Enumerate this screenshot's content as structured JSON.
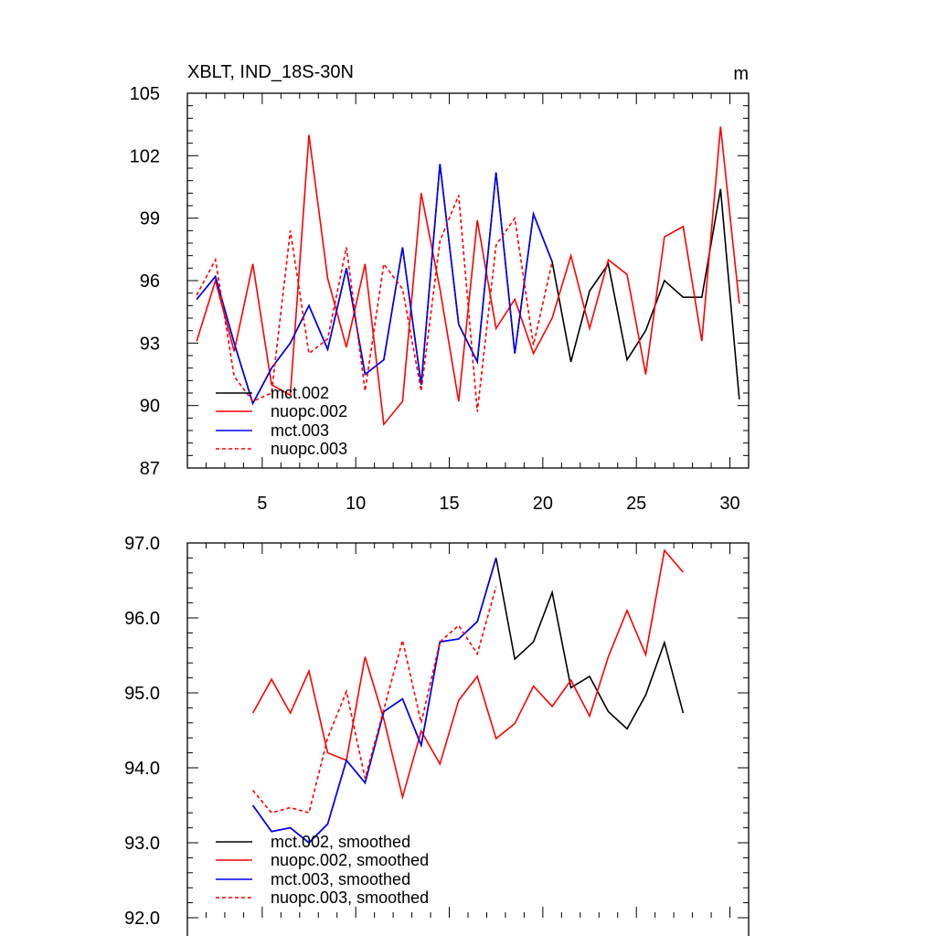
{
  "colors": {
    "mct": "#000000",
    "nuopc": "#ff0000",
    "mct003": "#0000ff"
  },
  "chart_data": [
    {
      "type": "line",
      "title": "XBLT, IND_18S-30N",
      "units": "m",
      "xlim": [
        1,
        31
      ],
      "ylim": [
        87,
        105
      ],
      "xticks": [
        5,
        10,
        15,
        20,
        25,
        30
      ],
      "xtick_labels": [
        "5",
        "10",
        "15",
        "20",
        "25",
        "30"
      ],
      "yticks": [
        87,
        90,
        93,
        96,
        99,
        102,
        105
      ],
      "ytick_labels": [
        "87",
        "90",
        "93",
        "96",
        "99",
        "102",
        "105"
      ],
      "legend_position": "lower-left",
      "series": [
        {
          "name": "mct.002",
          "legend": "mct.002",
          "color": "#000000",
          "dash": false,
          "x": [
            1.5,
            2.5,
            3.5,
            4.5,
            5.5,
            6.5,
            7.5,
            8.5,
            9.5,
            10.5,
            11.5,
            12.5,
            13.5,
            14.5,
            15.5,
            16.5,
            17.5,
            18.5,
            19.5,
            20.5,
            21.5,
            22.5,
            23.5,
            24.5,
            25.5,
            26.5,
            27.5,
            28.5,
            29.5,
            30.5
          ],
          "y": [
            95.1,
            96.2,
            93.0,
            90.1,
            91.8,
            93.0,
            94.8,
            92.7,
            96.6,
            91.5,
            92.2,
            97.6,
            91.0,
            101.6,
            93.9,
            92.1,
            101.2,
            92.5,
            99.2,
            96.9,
            92.1,
            95.5,
            96.8,
            92.2,
            93.6,
            96.0,
            95.2,
            95.2,
            100.4,
            90.3
          ]
        },
        {
          "name": "nuopc.002",
          "legend": "nuopc.002",
          "color": "#ff0000",
          "dash": false,
          "x": [
            1.5,
            2.5,
            3.5,
            4.5,
            5.5,
            6.5,
            7.5,
            8.5,
            9.5,
            10.5,
            11.5,
            12.5,
            13.5,
            14.5,
            15.5,
            16.5,
            17.5,
            18.5,
            19.5,
            20.5,
            21.5,
            22.5,
            23.5,
            24.5,
            25.5,
            26.5,
            27.5,
            28.5,
            29.5,
            30.5
          ],
          "y": [
            93.1,
            96.0,
            92.6,
            96.8,
            91.0,
            90.5,
            103.0,
            96.1,
            92.8,
            96.8,
            89.1,
            90.2,
            100.2,
            95.6,
            90.2,
            98.9,
            93.7,
            95.1,
            92.5,
            94.2,
            97.2,
            93.7,
            97.0,
            96.3,
            91.5,
            98.1,
            98.6,
            93.1,
            103.4,
            94.9
          ]
        },
        {
          "name": "mct.003",
          "legend": "mct.003",
          "color": "#0000ff",
          "dash": false,
          "x": [
            1.5,
            2.5,
            3.5,
            4.5,
            5.5,
            6.5,
            7.5,
            8.5,
            9.5,
            10.5,
            11.5,
            12.5,
            13.5,
            14.5,
            15.5,
            16.5,
            17.5,
            18.5,
            19.5,
            20.5
          ],
          "y": [
            95.1,
            96.2,
            93.0,
            90.1,
            91.8,
            93.0,
            94.8,
            92.7,
            96.6,
            91.5,
            92.2,
            97.6,
            91.0,
            101.6,
            93.9,
            92.1,
            101.2,
            92.5,
            99.2,
            96.9
          ]
        },
        {
          "name": "nuopc.003",
          "legend": "nuopc.003",
          "color": "#ff0000",
          "dash": true,
          "x": [
            1.5,
            2.5,
            3.5,
            4.5,
            5.5,
            6.5,
            7.5,
            8.5,
            9.5,
            10.5,
            11.5,
            12.5,
            13.5,
            14.5,
            15.5,
            16.5,
            17.5,
            18.5,
            19.5,
            20.5
          ],
          "y": [
            95.3,
            97.0,
            91.4,
            90.2,
            90.6,
            98.4,
            92.5,
            93.2,
            97.6,
            90.7,
            96.8,
            95.6,
            90.7,
            97.9,
            100.1,
            89.7,
            97.7,
            99.0,
            92.9,
            96.9
          ]
        }
      ]
    },
    {
      "type": "line",
      "xlim": [
        1,
        31
      ],
      "ylim": [
        92.0,
        97.0
      ],
      "xticks": [
        5,
        10,
        15,
        20,
        25,
        30
      ],
      "yticks": [
        92.0,
        93.0,
        94.0,
        95.0,
        96.0,
        97.0
      ],
      "ytick_labels": [
        "92.0",
        "93.0",
        "94.0",
        "95.0",
        "96.0",
        "97.0"
      ],
      "legend_position": "lower-left",
      "series": [
        {
          "name": "mct.002, smoothed",
          "legend": "mct.002, smoothed",
          "color": "#000000",
          "dash": false,
          "x": [
            4.5,
            5.5,
            6.5,
            7.5,
            8.5,
            9.5,
            10.5,
            11.5,
            12.5,
            13.5,
            14.5,
            15.5,
            16.5,
            17.5,
            18.5,
            19.5,
            20.5,
            21.5,
            22.5,
            23.5,
            24.5,
            25.5,
            26.5,
            27.5
          ],
          "y": [
            93.5,
            93.15,
            93.2,
            93.0,
            93.25,
            94.1,
            93.8,
            94.75,
            94.92,
            94.3,
            95.68,
            95.72,
            95.95,
            96.8,
            95.45,
            95.68,
            96.34,
            95.07,
            95.22,
            94.75,
            94.52,
            94.97,
            95.67,
            94.73
          ]
        },
        {
          "name": "nuopc.002, smoothed",
          "legend": "nuopc.002, smoothed",
          "color": "#ff0000",
          "dash": false,
          "x": [
            4.5,
            5.5,
            6.5,
            7.5,
            8.5,
            9.5,
            10.5,
            11.5,
            12.5,
            13.5,
            14.5,
            15.5,
            16.5,
            17.5,
            18.5,
            19.5,
            20.5,
            21.5,
            22.5,
            23.5,
            24.5,
            25.5,
            26.5,
            27.5
          ],
          "y": [
            94.73,
            95.18,
            94.73,
            95.29,
            94.2,
            94.1,
            95.48,
            94.65,
            93.61,
            94.49,
            94.05,
            94.9,
            95.22,
            94.39,
            94.59,
            95.09,
            94.82,
            95.17,
            94.69,
            95.48,
            96.1,
            95.51,
            96.9,
            96.61
          ]
        },
        {
          "name": "mct.003, smoothed",
          "legend": "mct.003, smoothed",
          "color": "#0000ff",
          "dash": false,
          "x": [
            4.5,
            5.5,
            6.5,
            7.5,
            8.5,
            9.5,
            10.5,
            11.5,
            12.5,
            13.5,
            14.5,
            15.5,
            16.5,
            17.5
          ],
          "y": [
            93.5,
            93.15,
            93.2,
            93.0,
            93.25,
            94.1,
            93.8,
            94.75,
            94.92,
            94.3,
            95.68,
            95.72,
            95.95,
            96.8
          ]
        },
        {
          "name": "nuopc.003, smoothed",
          "legend": "nuopc.003, smoothed",
          "color": "#ff0000",
          "dash": true,
          "x": [
            4.5,
            5.5,
            6.5,
            7.5,
            8.5,
            9.5,
            10.5,
            11.5,
            12.5,
            13.5,
            14.5,
            15.5,
            16.5,
            17.5
          ],
          "y": [
            93.7,
            93.4,
            93.47,
            93.4,
            94.4,
            95.02,
            93.86,
            94.78,
            95.7,
            94.6,
            95.68,
            95.9,
            95.52,
            96.42
          ]
        }
      ]
    }
  ]
}
